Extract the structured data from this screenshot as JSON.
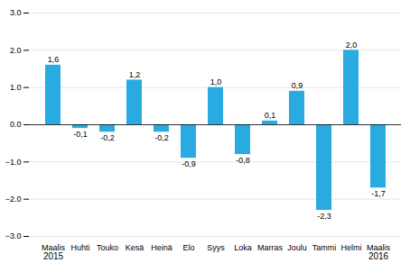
{
  "chart_data": {
    "type": "bar",
    "categories": [
      "Maalis",
      "Huhti",
      "Touko",
      "Kesä",
      "Heinä",
      "Elo",
      "Syys",
      "Loka",
      "Marras",
      "Joulu",
      "Tammi",
      "Helmi",
      "Maalis"
    ],
    "values": [
      1.6,
      -0.1,
      -0.2,
      1.2,
      -0.2,
      -0.9,
      1.0,
      -0.8,
      0.1,
      0.9,
      -2.3,
      2.0,
      -1.7
    ],
    "value_labels": [
      "1,6",
      "-0,1",
      "-0,2",
      "1,2",
      "-0,2",
      "-0,9",
      "1,0",
      "-0,8",
      "0,1",
      "0,9",
      "-2,3",
      "2,0",
      "-1,7"
    ],
    "data_labels": true,
    "color": "#29abe2",
    "ylim": [
      -3,
      3
    ],
    "yticks": [
      -3,
      -2,
      -1,
      0,
      1,
      2,
      3
    ],
    "grid": true,
    "annotations": [
      {
        "text": "2015",
        "x": 0
      },
      {
        "text": "2016",
        "x": 12
      }
    ]
  }
}
